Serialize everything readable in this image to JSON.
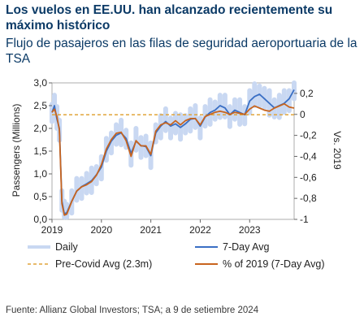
{
  "title": "Los vuelos en EE.UU. han alcanzado recientemente su máximo histórico",
  "subtitle": "Flujo de pasajeros en las filas de seguridad aeroportuaria de la TSA",
  "source": "Fuente: Allianz Global Investors; TSA; a 9 de setiembre 2024",
  "colors": {
    "daily": "#c9d8f2",
    "avg7": "#3a6fc4",
    "precovid": "#e0a43a",
    "pct2019": "#c8641e",
    "title": "#0b3a66"
  },
  "chart_data": {
    "type": "line",
    "ylabel": "Passengers (Millions)",
    "y2label": "Vs. 2019",
    "ylim": [
      0,
      3
    ],
    "y2lim": [
      -1,
      0.3
    ],
    "xlim": [
      2019,
      2023.9
    ],
    "x_ticks": [
      "2019",
      "2020",
      "2021",
      "2022",
      "2023"
    ],
    "y_ticks": [
      "0,0",
      "0,5",
      "1,0",
      "1,5",
      "2,0",
      "2,5",
      "3,0"
    ],
    "y2_ticks": [
      "-1",
      "-0,8",
      "-0,6",
      "-0,4",
      "-0,2",
      "0",
      "0,2"
    ],
    "legend": {
      "placement": "bottom",
      "entries": [
        "Daily",
        "7-Day Avg",
        "Pre-Covid Avg (2.3m)",
        "% of 2019 (7-Day Avg)"
      ]
    },
    "series": [
      {
        "name": "7-Day Avg",
        "x": [
          2019.0,
          2019.05,
          2019.1,
          2019.15,
          2019.2,
          2019.25,
          2019.3,
          2019.4,
          2019.5,
          2019.6,
          2019.7,
          2019.8,
          2019.9,
          2020.0,
          2020.1,
          2020.2,
          2020.3,
          2020.4,
          2020.5,
          2020.6,
          2020.7,
          2020.8,
          2020.9,
          2021.0,
          2021.1,
          2021.2,
          2021.3,
          2021.4,
          2021.5,
          2021.6,
          2021.7,
          2021.8,
          2021.9,
          2022.0,
          2022.1,
          2022.2,
          2022.3,
          2022.4,
          2022.5,
          2022.6,
          2022.7,
          2022.8,
          2022.9,
          2023.0,
          2023.1,
          2023.2,
          2023.3,
          2023.4,
          2023.5,
          2023.6,
          2023.7,
          2023.8,
          2023.9
        ],
        "values": [
          2.35,
          2.5,
          2.2,
          2.0,
          0.4,
          0.12,
          0.15,
          0.4,
          0.62,
          0.72,
          0.78,
          0.85,
          0.98,
          1.15,
          1.5,
          1.72,
          1.85,
          1.9,
          1.78,
          1.45,
          1.72,
          1.62,
          1.6,
          1.4,
          1.9,
          2.05,
          2.15,
          2.05,
          2.1,
          2.02,
          2.1,
          2.2,
          2.22,
          2.05,
          2.25,
          2.35,
          2.4,
          2.5,
          2.45,
          2.3,
          2.4,
          2.35,
          2.3,
          2.6,
          2.7,
          2.75,
          2.65,
          2.55,
          2.45,
          2.5,
          2.55,
          2.65,
          2.85
        ]
      },
      {
        "name": "% of 2019 (7-Day Avg)",
        "x": [
          2019.0,
          2019.05,
          2019.1,
          2019.15,
          2019.2,
          2019.25,
          2019.3,
          2019.4,
          2019.5,
          2019.6,
          2019.7,
          2019.8,
          2019.9,
          2020.0,
          2020.1,
          2020.2,
          2020.3,
          2020.4,
          2020.5,
          2020.6,
          2020.7,
          2020.8,
          2020.9,
          2021.0,
          2021.1,
          2021.2,
          2021.3,
          2021.4,
          2021.5,
          2021.6,
          2021.7,
          2021.8,
          2021.9,
          2022.0,
          2022.1,
          2022.2,
          2022.3,
          2022.4,
          2022.5,
          2022.6,
          2022.7,
          2022.8,
          2022.9,
          2023.0,
          2023.1,
          2023.2,
          2023.3,
          2023.4,
          2023.5,
          2023.6,
          2023.7,
          2023.8,
          2023.9
        ],
        "values": [
          0.02,
          0.05,
          -0.02,
          -0.15,
          -0.85,
          -0.96,
          -0.95,
          -0.83,
          -0.73,
          -0.69,
          -0.67,
          -0.64,
          -0.58,
          -0.48,
          -0.33,
          -0.24,
          -0.18,
          -0.17,
          -0.25,
          -0.4,
          -0.25,
          -0.3,
          -0.3,
          -0.38,
          -0.16,
          -0.1,
          -0.08,
          -0.1,
          -0.06,
          -0.1,
          -0.06,
          -0.04,
          -0.04,
          -0.1,
          -0.02,
          0.0,
          0.02,
          0.03,
          0.02,
          0.0,
          0.02,
          0.01,
          0.0,
          0.05,
          0.08,
          0.06,
          0.04,
          0.03,
          0.06,
          0.08,
          0.1,
          0.07,
          0.06
        ]
      },
      {
        "name": "Pre-Covid Avg (2.3m)",
        "values": [
          2.3
        ]
      }
    ]
  }
}
